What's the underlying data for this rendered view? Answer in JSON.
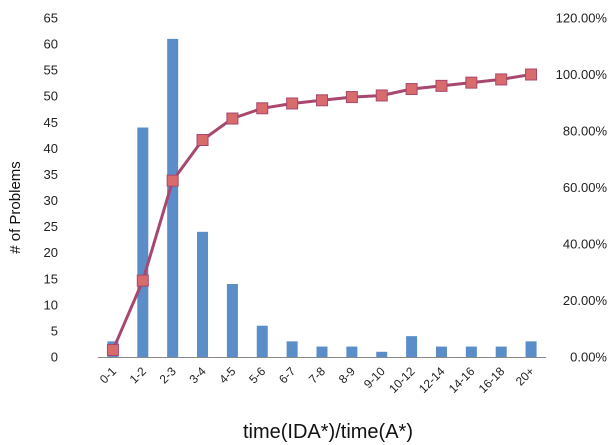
{
  "chart_data": {
    "type": "bar",
    "categories": [
      "0-1",
      "1-2",
      "2-3",
      "3-4",
      "4-5",
      "5-6",
      "6-7",
      "7-8",
      "8-9",
      "9-10",
      "10-12",
      "12-14",
      "14-16",
      "16-18",
      "20+"
    ],
    "series": [
      {
        "type": "bar",
        "axis": "left",
        "color": "#5b8ec9",
        "values": [
          3,
          44,
          61,
          24,
          14,
          6,
          3,
          2,
          2,
          1,
          4,
          2,
          2,
          2,
          3
        ]
      },
      {
        "type": "line",
        "axis": "right",
        "color": "#a8476f",
        "marker_color": "#d86b6b",
        "values": [
          0.0246,
          0.2705,
          0.6243,
          0.7681,
          0.8441,
          0.8804,
          0.8974,
          0.9087,
          0.9201,
          0.9258,
          0.9485,
          0.9598,
          0.9712,
          0.9825,
          1.0
        ]
      }
    ],
    "xlabel": "time(IDA*)/time(A*)",
    "ylabel": "# of Problems",
    "ylim": [
      0,
      65
    ],
    "y_ticks": [
      "0",
      "5",
      "10",
      "15",
      "20",
      "25",
      "30",
      "35",
      "40",
      "45",
      "50",
      "55",
      "60",
      "65"
    ],
    "y2lim": [
      0,
      1.2
    ],
    "y2_ticks": [
      "0.00%",
      "20.00%",
      "40.00%",
      "60.00%",
      "80.00%",
      "100.00%",
      "120.00%"
    ],
    "grid": false,
    "legend": "none"
  }
}
